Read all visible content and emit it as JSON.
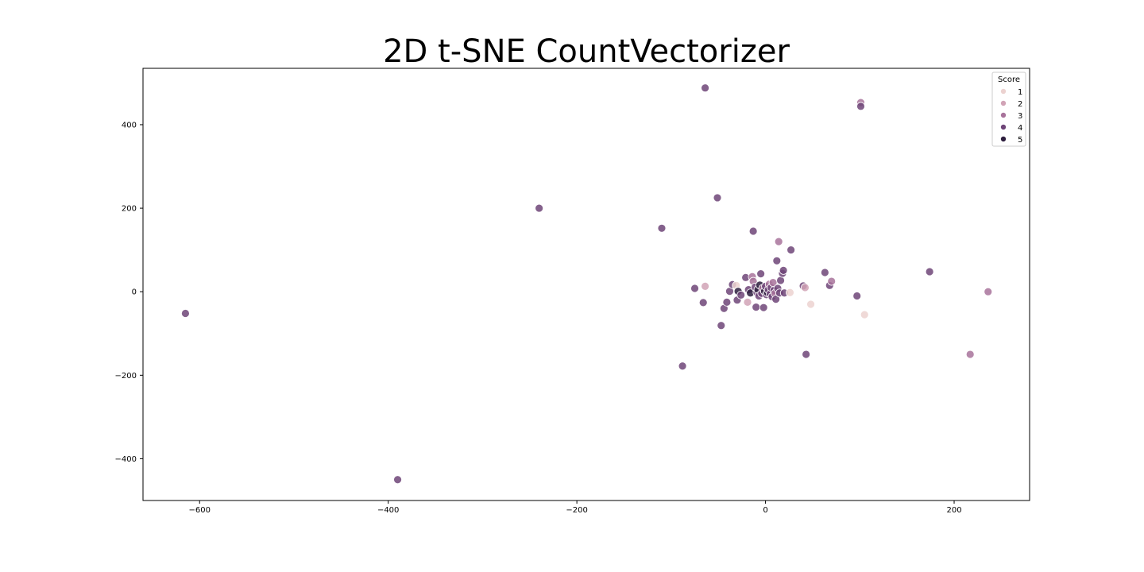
{
  "chart_data": {
    "type": "scatter",
    "title": "2D t-SNE CountVectorizer",
    "xlabel": "",
    "ylabel": "",
    "xlim": [
      -660,
      280
    ],
    "ylim": [
      -500,
      535
    ],
    "xticks": [
      -600,
      -400,
      -200,
      0,
      200
    ],
    "yticks": [
      -400,
      -200,
      0,
      200,
      400
    ],
    "xtick_labels": [
      "−600",
      "−400",
      "−200",
      "0",
      "200"
    ],
    "ytick_labels": [
      "−400",
      "−200",
      "0",
      "200",
      "400"
    ],
    "grid": false,
    "legend": {
      "title": "Score",
      "placement": "top-right",
      "entries": [
        {
          "label": "1",
          "color": "#ecd2d0"
        },
        {
          "label": "2",
          "color": "#d1a3b6"
        },
        {
          "label": "3",
          "color": "#a8739b"
        },
        {
          "label": "4",
          "color": "#6e4578"
        },
        {
          "label": "5",
          "color": "#2d1e3e"
        }
      ]
    },
    "point_alpha": 0.85,
    "points": [
      {
        "x": -615,
        "y": -52,
        "score": 4
      },
      {
        "x": -390,
        "y": -450,
        "score": 4
      },
      {
        "x": -240,
        "y": 200,
        "score": 4
      },
      {
        "x": -110,
        "y": 152,
        "score": 4
      },
      {
        "x": -88,
        "y": -178,
        "score": 4
      },
      {
        "x": -64,
        "y": 488,
        "score": 4
      },
      {
        "x": -51,
        "y": 225,
        "score": 4
      },
      {
        "x": -47,
        "y": -81,
        "score": 4
      },
      {
        "x": -75,
        "y": 8,
        "score": 4
      },
      {
        "x": -66,
        "y": -26,
        "score": 4
      },
      {
        "x": -64,
        "y": 13,
        "score": 2
      },
      {
        "x": -44,
        "y": -40,
        "score": 4
      },
      {
        "x": -41,
        "y": -25,
        "score": 4
      },
      {
        "x": -38,
        "y": 1,
        "score": 4
      },
      {
        "x": -35,
        "y": 17,
        "score": 4
      },
      {
        "x": -31,
        "y": 15,
        "score": 1
      },
      {
        "x": -30,
        "y": -20,
        "score": 4
      },
      {
        "x": -29,
        "y": 1,
        "score": 5
      },
      {
        "x": -26,
        "y": -8,
        "score": 4
      },
      {
        "x": -21,
        "y": 34,
        "score": 4
      },
      {
        "x": -19,
        "y": -25,
        "score": 2
      },
      {
        "x": -18,
        "y": 5,
        "score": 4
      },
      {
        "x": -16,
        "y": -3,
        "score": 5
      },
      {
        "x": -14,
        "y": 36,
        "score": 3
      },
      {
        "x": -13,
        "y": 25,
        "score": 3
      },
      {
        "x": -13,
        "y": 145,
        "score": 4
      },
      {
        "x": -11,
        "y": 11,
        "score": 4
      },
      {
        "x": -10,
        "y": -37,
        "score": 4
      },
      {
        "x": -9,
        "y": -2,
        "score": 4
      },
      {
        "x": -8,
        "y": 5,
        "score": 5
      },
      {
        "x": -7,
        "y": -10,
        "score": 4
      },
      {
        "x": -6,
        "y": 16,
        "score": 5
      },
      {
        "x": -5,
        "y": 43,
        "score": 4
      },
      {
        "x": -4,
        "y": -4,
        "score": 4
      },
      {
        "x": -3,
        "y": 8,
        "score": 3
      },
      {
        "x": -2,
        "y": -38,
        "score": 4
      },
      {
        "x": -1,
        "y": 1,
        "score": 5
      },
      {
        "x": 0,
        "y": 13,
        "score": 4
      },
      {
        "x": 1,
        "y": -7,
        "score": 4
      },
      {
        "x": 2,
        "y": -2,
        "score": 5
      },
      {
        "x": 3,
        "y": 5,
        "score": 4
      },
      {
        "x": 4,
        "y": 18,
        "score": 3
      },
      {
        "x": 5,
        "y": -5,
        "score": 4
      },
      {
        "x": 6,
        "y": 10,
        "score": 4
      },
      {
        "x": 7,
        "y": -12,
        "score": 4
      },
      {
        "x": 8,
        "y": 22,
        "score": 3
      },
      {
        "x": 9,
        "y": 3,
        "score": 4
      },
      {
        "x": 10,
        "y": -4,
        "score": 3
      },
      {
        "x": 11,
        "y": -18,
        "score": 4
      },
      {
        "x": 12,
        "y": 74,
        "score": 4
      },
      {
        "x": 13,
        "y": 8,
        "score": 4
      },
      {
        "x": 14,
        "y": 120,
        "score": 3
      },
      {
        "x": 15,
        "y": -3,
        "score": 4
      },
      {
        "x": 16,
        "y": 27,
        "score": 4
      },
      {
        "x": 18,
        "y": 44,
        "score": 4
      },
      {
        "x": 19,
        "y": 51,
        "score": 4
      },
      {
        "x": 20,
        "y": -3,
        "score": 4
      },
      {
        "x": 26,
        "y": -2,
        "score": 1
      },
      {
        "x": 27,
        "y": 100,
        "score": 4
      },
      {
        "x": 40,
        "y": 14,
        "score": 4
      },
      {
        "x": 42,
        "y": 10,
        "score": 2
      },
      {
        "x": 43,
        "y": -150,
        "score": 4
      },
      {
        "x": 48,
        "y": -30,
        "score": 1
      },
      {
        "x": 63,
        "y": 46,
        "score": 4
      },
      {
        "x": 68,
        "y": 15,
        "score": 4
      },
      {
        "x": 70,
        "y": 25,
        "score": 3
      },
      {
        "x": 97,
        "y": -10,
        "score": 4
      },
      {
        "x": 101,
        "y": 453,
        "score": 3
      },
      {
        "x": 101,
        "y": 444,
        "score": 4
      },
      {
        "x": 105,
        "y": -55,
        "score": 1
      },
      {
        "x": 174,
        "y": 48,
        "score": 4
      },
      {
        "x": 217,
        "y": -150,
        "score": 3
      },
      {
        "x": 236,
        "y": 0,
        "score": 3
      }
    ]
  }
}
